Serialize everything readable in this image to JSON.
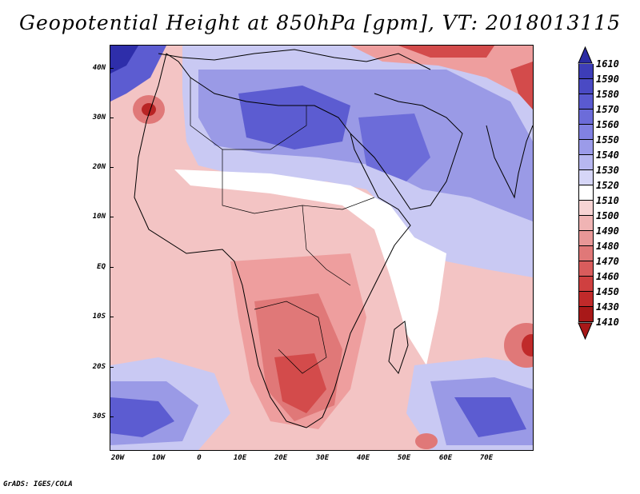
{
  "title": "Geopotential Height at 850hPa [gpm], VT: 2018013115",
  "credit": "GrADS: IGES/COLA",
  "lat_labels": [
    "40N",
    "30N",
    "20N",
    "10N",
    "EQ",
    "10S",
    "20S",
    "30S"
  ],
  "lon_labels": [
    "20W",
    "10W",
    "0",
    "10E",
    "20E",
    "30E",
    "40E",
    "50E",
    "60E",
    "70E"
  ],
  "colorbar": {
    "labels": [
      "1610",
      "1590",
      "1580",
      "1570",
      "1560",
      "1550",
      "1540",
      "1530",
      "1520",
      "1510",
      "1500",
      "1490",
      "1480",
      "1470",
      "1460",
      "1450",
      "1430",
      "1410"
    ],
    "colors": [
      "#2b2ba3",
      "#3d3db8",
      "#4a4ac4",
      "#5a5ad0",
      "#6c6cd9",
      "#8181e2",
      "#9b9be9",
      "#b7b7f0",
      "#d6d6f7",
      "#ffffff",
      "#f7d3d3",
      "#f0b4b4",
      "#e89797",
      "#e07878",
      "#d95c5c",
      "#cf4040",
      "#c02a2a",
      "#a81818"
    ]
  },
  "map_colors": {
    "ocean_base": "#f3c4c4",
    "blue_light": "#c9c9f3",
    "blue_mid": "#9a9ae6",
    "blue_deep": "#5c5cd1",
    "blue_darkest": "#2e2eaa",
    "red_light": "#ee9e9e",
    "red_mid": "#e07878",
    "red_deep": "#d34b4b",
    "red_darkest": "#b82424",
    "white_band": "#ffffff"
  }
}
